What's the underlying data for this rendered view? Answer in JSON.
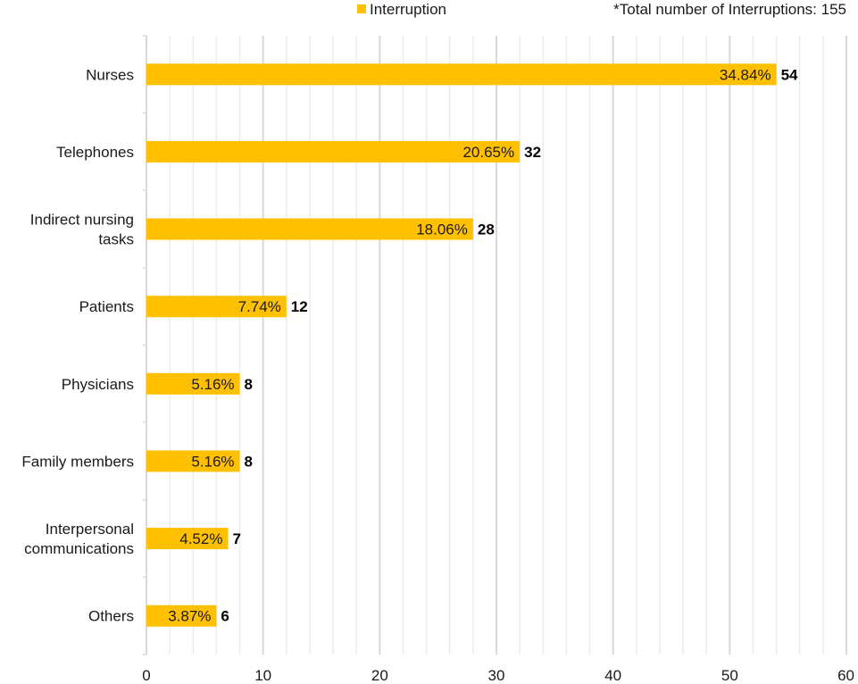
{
  "chart_data": {
    "type": "bar",
    "orientation": "horizontal",
    "categories": [
      "Nurses",
      "Telephones",
      "Indirect nursing tasks",
      "Patients",
      "Physicians",
      "Family members",
      "Interpersonal communications",
      "Others"
    ],
    "series": [
      {
        "name": "Interruption",
        "color": "#FFC000",
        "values": [
          54,
          32,
          28,
          12,
          8,
          8,
          7,
          6
        ],
        "percent_labels": [
          "34.84%",
          "20.65%",
          "18.06%",
          "7.74%",
          "5.16%",
          "5.16%",
          "4.52%",
          "3.87%"
        ]
      }
    ],
    "xlim": [
      0,
      60
    ],
    "xticks": [
      0,
      10,
      20,
      30,
      40,
      50,
      60
    ],
    "grid": "vertical",
    "legend": {
      "position": "top",
      "label": "Interruption"
    },
    "annotation": "*Total number of Interruptions: 155"
  }
}
